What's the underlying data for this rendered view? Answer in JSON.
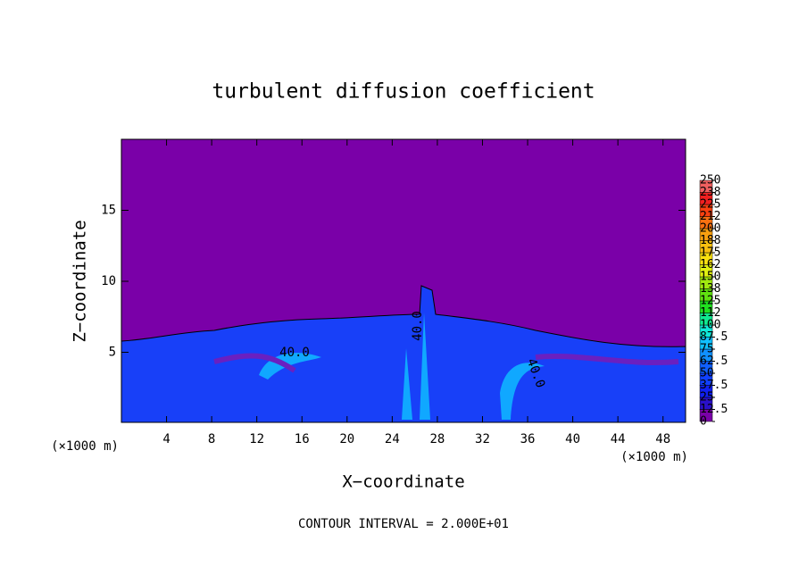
{
  "chart_data": {
    "type": "contour",
    "title": "turbulent diffusion coefficient",
    "x_label": "X−coordinate",
    "y_label": "Z−coordinate",
    "x_unit_label": "(×1000 m)",
    "x_unit_label_right": "(×1000 m)",
    "footnote": "CONTOUR INTERVAL = 2.000E+01",
    "xlim": [
      0,
      50
    ],
    "xticks": [
      4,
      8,
      12,
      16,
      20,
      24,
      28,
      32,
      36,
      40,
      44,
      48
    ],
    "ylim": [
      0,
      20
    ],
    "yticks": [
      5,
      10,
      15
    ],
    "contour_labels": [
      "40.0",
      "40.0",
      "40.0"
    ],
    "colorbar_lim": [
      0,
      250
    ],
    "colorbar_ticks": [
      0,
      12.5,
      25,
      37.5,
      50,
      62.5,
      75,
      87.5,
      {
        "value": 100,
        "label": "100"
      },
      {
        "value": 112.5,
        "label": "112"
      },
      125,
      {
        "value": 137.5,
        "label": "138"
      },
      150,
      {
        "value": 162.5,
        "label": "162"
      },
      175,
      {
        "value": 187.5,
        "label": "188"
      },
      200,
      {
        "value": 212.5,
        "label": "212"
      },
      225,
      {
        "value": 237.5,
        "label": "238"
      },
      250
    ],
    "colorbar_colors": [
      "#7a00a8",
      "#2a10c8",
      "#1020f0",
      "#1040ff",
      "#1060ff",
      "#1090ff",
      "#10c0ff",
      "#10e8d8",
      "#10e890",
      "#20e020",
      "#60e010",
      "#a0e810",
      "#e0f010",
      "#f8e010",
      "#f8c010",
      "#f8a010",
      "#f87010",
      "#f84010",
      "#f02020",
      "#f06060"
    ]
  }
}
